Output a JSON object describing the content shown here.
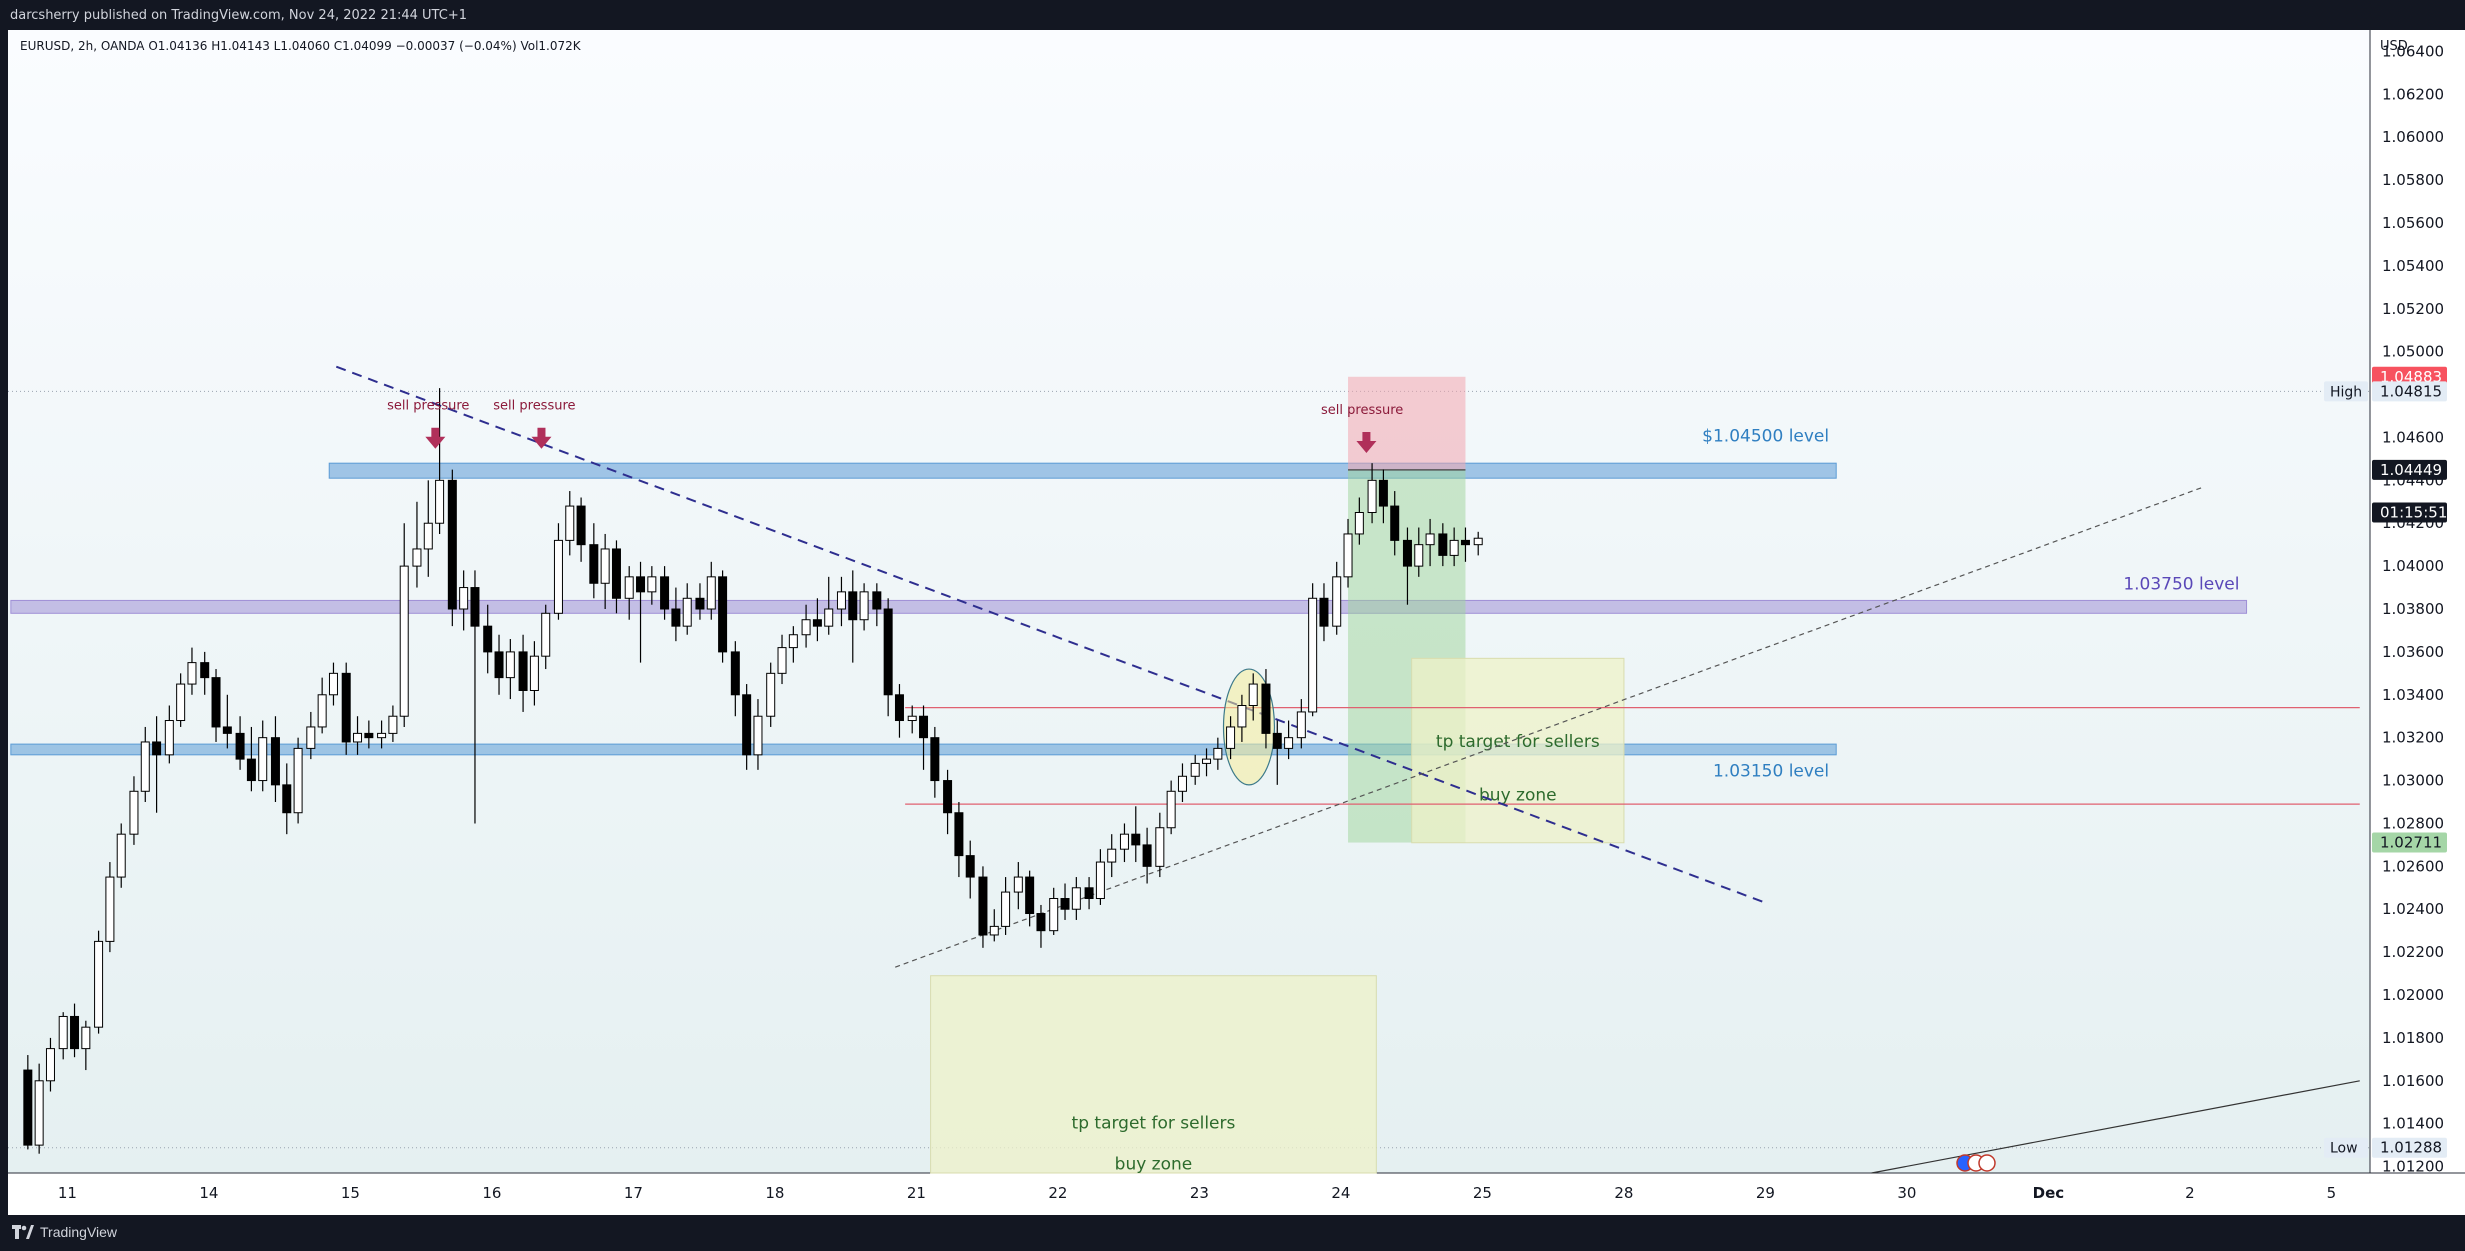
{
  "header": {
    "published_text": "darcsherry published on TradingView.com, Nov 24, 2022 21:44 UTC+1"
  },
  "footer": {
    "brand": "TradingView"
  },
  "colors": {
    "background": "#131722",
    "chart_top": "#fafcff",
    "chart_bottom": "#e7f1f2",
    "blue_zone": "#5b9bd5",
    "purple_zone": "#9f8fd6",
    "trendline": "#2e2e8f",
    "red_line": "#e06070",
    "sell_pressure": "#b0305a",
    "label_blue": "#2f7fc1",
    "label_purple": "#5a48b8",
    "label_green": "#2d6b2d",
    "green_box": "#9ed49a",
    "red_box": "#f3a6ae",
    "yellow_box": "#eef2c8"
  },
  "chart_data": {
    "type": "candlestick",
    "symbol_line": "EURUSD, 2h, OANDA  O1.04136  H1.04143  L1.04060  C1.04099  −0.00037 (−0.04%)  Vol1.072K",
    "currency": "USD",
    "ylim": [
      1.0117,
      1.065
    ],
    "y_ticks": [
      "1.01200",
      "1.01400",
      "1.01600",
      "1.01800",
      "1.02000",
      "1.02200",
      "1.02400",
      "1.02600",
      "1.02800",
      "1.03000",
      "1.03200",
      "1.03400",
      "1.03600",
      "1.03800",
      "1.04000",
      "1.04200",
      "1.04400",
      "1.04600",
      "1.04800",
      "1.05000",
      "1.05200",
      "1.05400",
      "1.05600",
      "1.05800",
      "1.06000",
      "1.06200",
      "1.06400"
    ],
    "x_ticks": [
      {
        "label": "11",
        "x": 0.3
      },
      {
        "label": "14",
        "x": 1.3
      },
      {
        "label": "15",
        "x": 2.3
      },
      {
        "label": "16",
        "x": 3.3
      },
      {
        "label": "17",
        "x": 4.3
      },
      {
        "label": "18",
        "x": 5.3
      },
      {
        "label": "21",
        "x": 6.3
      },
      {
        "label": "22",
        "x": 7.3
      },
      {
        "label": "23",
        "x": 8.3
      },
      {
        "label": "24",
        "x": 9.3
      },
      {
        "label": "25",
        "x": 10.3
      },
      {
        "label": "28",
        "x": 11.3
      },
      {
        "label": "29",
        "x": 12.3
      },
      {
        "label": "30",
        "x": 13.3
      },
      {
        "label": "Dec",
        "x": 14.3
      },
      {
        "label": "2",
        "x": 15.3
      },
      {
        "label": "5",
        "x": 16.3
      }
    ],
    "xlim": [
      -0.1,
      16.5
    ],
    "price_badges": [
      {
        "value": "1.04883",
        "price": 1.04883,
        "color": "#f7525f"
      },
      {
        "value": "1.04815",
        "price": 1.04815,
        "color": "#e3ecf5",
        "text_color": "#131722",
        "side_label": "High"
      },
      {
        "value": "1.04449",
        "price": 1.04449,
        "color": "#131722"
      },
      {
        "value": "01:15:51",
        "price": 1.0425,
        "color": "#131722"
      },
      {
        "value": "1.02711",
        "price": 1.02711,
        "color": "#a5d6a7",
        "text_color": "#131722"
      },
      {
        "value": "1.01288",
        "price": 1.01288,
        "color": "#e3ecf5",
        "text_color": "#131722",
        "side_label": "Low"
      }
    ],
    "zones": [
      {
        "name": "blue-zone-104500",
        "x1": 2.15,
        "x2": 12.8,
        "p1": 1.0441,
        "p2": 1.0448,
        "color": "#5b9bd5"
      },
      {
        "name": "purple-zone-103750",
        "x1": -0.1,
        "x2": 15.7,
        "p1": 1.0378,
        "p2": 1.0384,
        "color": "#9f8fd6"
      },
      {
        "name": "blue-zone-103150",
        "x1": -0.1,
        "x2": 12.8,
        "p1": 1.0312,
        "p2": 1.0317,
        "color": "#5b9bd5"
      }
    ],
    "level_labels": [
      {
        "text": "$1.04500 level",
        "x": 12.75,
        "price": 1.0458,
        "color": "#2f7fc1"
      },
      {
        "text": "1.03750 level",
        "x": 15.65,
        "price": 1.0389,
        "color": "#5a48b8"
      },
      {
        "text": "1.03150 level",
        "x": 12.75,
        "price": 1.0302,
        "color": "#2f7fc1"
      }
    ],
    "annotations": [
      {
        "text": "sell pressure",
        "x": 2.85,
        "price": 1.0473,
        "color": "#8b1a3a"
      },
      {
        "text": "sell pressure",
        "x": 3.6,
        "price": 1.0473,
        "color": "#8b1a3a"
      },
      {
        "text": "sell pressure",
        "x": 9.45,
        "price": 1.0471,
        "color": "#8b1a3a"
      }
    ],
    "arrows": [
      {
        "x": 2.9,
        "price": 1.0458
      },
      {
        "x": 3.65,
        "price": 1.0458
      },
      {
        "x": 9.48,
        "price": 1.0456
      }
    ],
    "red_lines": [
      {
        "x1": 6.22,
        "x2": 16.5,
        "price": 1.0334
      },
      {
        "x1": 6.22,
        "x2": 16.5,
        "price": 1.0289
      }
    ],
    "trendlines": [
      {
        "name": "descending-trendline",
        "x1": 2.2,
        "p1": 1.0493,
        "x2": 12.3,
        "p2": 1.0243,
        "color": "#2e2e8f",
        "dash": "10,7",
        "width": 2
      },
      {
        "name": "ascending-trendline",
        "x1": 6.15,
        "p1": 1.0213,
        "x2": 15.4,
        "p2": 1.0437,
        "color": "#555555",
        "dash": "5,4",
        "width": 1.2
      },
      {
        "name": "long-uptrend-line",
        "x1": 13.05,
        "p1": 1.0117,
        "x2": 16.5,
        "p2": 1.016,
        "color": "#333333",
        "dash": "",
        "width": 1.2
      }
    ],
    "position_box": {
      "x1": 9.35,
      "x2": 10.18,
      "entry": 1.04449,
      "stop": 1.04883,
      "target": 1.02711
    },
    "tp_boxes": [
      {
        "x1": 9.8,
        "x2": 11.3,
        "p1": 1.0271,
        "p2": 1.0357,
        "label1": "tp target for sellers",
        "label1_price": 1.0318,
        "label2": "buy zone",
        "label2_price": 1.0293
      },
      {
        "x1": 6.4,
        "x2": 9.55,
        "p1": 1.0117,
        "p2": 1.0209,
        "label1": "tp target for sellers",
        "label1_price": 1.014,
        "label2": "buy zone",
        "label2_price": 1.0121
      }
    ],
    "circle": {
      "x": 8.65,
      "price": 1.0325,
      "rx_days": 0.36,
      "r_price": 0.0027
    },
    "candles": [
      [
        0.02,
        1.0165,
        1.013,
        1.0172,
        1.0128
      ],
      [
        0.1,
        1.013,
        1.016,
        1.0168,
        1.0126
      ],
      [
        0.18,
        1.016,
        1.0175,
        1.018,
        1.0155
      ],
      [
        0.27,
        1.0175,
        1.019,
        1.0192,
        1.017
      ],
      [
        0.35,
        1.019,
        1.0175,
        1.0196,
        1.0171
      ],
      [
        0.43,
        1.0175,
        1.0185,
        1.0188,
        1.0165
      ],
      [
        0.52,
        1.0185,
        1.0225,
        1.023,
        1.0182
      ],
      [
        0.6,
        1.0225,
        1.0255,
        1.0262,
        1.022
      ],
      [
        0.68,
        1.0255,
        1.0275,
        1.028,
        1.025
      ],
      [
        0.77,
        1.0275,
        1.0295,
        1.0302,
        1.027
      ],
      [
        0.85,
        1.0295,
        1.0318,
        1.0325,
        1.029
      ],
      [
        0.93,
        1.0318,
        1.0312,
        1.033,
        1.0285
      ],
      [
        1.02,
        1.0312,
        1.0328,
        1.0335,
        1.0308
      ],
      [
        1.1,
        1.0328,
        1.0345,
        1.035,
        1.0325
      ],
      [
        1.18,
        1.0345,
        1.0355,
        1.0362,
        1.034
      ],
      [
        1.27,
        1.0355,
        1.0348,
        1.036,
        1.034
      ],
      [
        1.35,
        1.0348,
        1.0325,
        1.0352,
        1.0318
      ],
      [
        1.43,
        1.0325,
        1.0322,
        1.034,
        1.0315
      ],
      [
        1.52,
        1.0322,
        1.031,
        1.033,
        1.0305
      ],
      [
        1.6,
        1.031,
        1.03,
        1.0325,
        1.0295
      ],
      [
        1.68,
        1.03,
        1.032,
        1.0328,
        1.0295
      ],
      [
        1.77,
        1.032,
        1.0298,
        1.033,
        1.029
      ],
      [
        1.85,
        1.0298,
        1.0285,
        1.0308,
        1.0275
      ],
      [
        1.93,
        1.0285,
        1.0315,
        1.032,
        1.028
      ],
      [
        2.02,
        1.0315,
        1.0325,
        1.0332,
        1.031
      ],
      [
        2.1,
        1.0325,
        1.034,
        1.0348,
        1.0322
      ],
      [
        2.18,
        1.034,
        1.035,
        1.0355,
        1.0335
      ],
      [
        2.27,
        1.035,
        1.0318,
        1.0355,
        1.0312
      ],
      [
        2.35,
        1.0318,
        1.0322,
        1.033,
        1.0312
      ],
      [
        2.43,
        1.0322,
        1.032,
        1.0328,
        1.0315
      ],
      [
        2.52,
        1.032,
        1.0322,
        1.0328,
        1.0315
      ],
      [
        2.6,
        1.0322,
        1.033,
        1.0335,
        1.0318
      ],
      [
        2.68,
        1.033,
        1.04,
        1.042,
        1.0325
      ],
      [
        2.77,
        1.04,
        1.0408,
        1.043,
        1.039
      ],
      [
        2.85,
        1.0408,
        1.042,
        1.044,
        1.0395
      ],
      [
        2.93,
        1.042,
        1.044,
        1.0483,
        1.0415
      ],
      [
        3.02,
        1.044,
        1.038,
        1.0445,
        1.0372
      ],
      [
        3.1,
        1.038,
        1.039,
        1.0398,
        1.037
      ],
      [
        3.18,
        1.039,
        1.0372,
        1.0398,
        1.028
      ],
      [
        3.27,
        1.0372,
        1.036,
        1.0382,
        1.035
      ],
      [
        3.35,
        1.036,
        1.0348,
        1.0368,
        1.034
      ],
      [
        3.43,
        1.0348,
        1.036,
        1.0366,
        1.0338
      ],
      [
        3.52,
        1.036,
        1.0342,
        1.0368,
        1.0332
      ],
      [
        3.6,
        1.0342,
        1.0358,
        1.0365,
        1.0335
      ],
      [
        3.68,
        1.0358,
        1.0378,
        1.0382,
        1.0352
      ],
      [
        3.77,
        1.0378,
        1.0412,
        1.042,
        1.0375
      ],
      [
        3.85,
        1.0412,
        1.0428,
        1.0435,
        1.0405
      ],
      [
        3.93,
        1.0428,
        1.041,
        1.0432,
        1.0402
      ],
      [
        4.02,
        1.041,
        1.0392,
        1.042,
        1.0385
      ],
      [
        4.1,
        1.0392,
        1.0408,
        1.0415,
        1.038
      ],
      [
        4.18,
        1.0408,
        1.0385,
        1.0412,
        1.0378
      ],
      [
        4.27,
        1.0385,
        1.0395,
        1.04,
        1.0375
      ],
      [
        4.35,
        1.0395,
        1.0388,
        1.0402,
        1.0355
      ],
      [
        4.43,
        1.0388,
        1.0395,
        1.04,
        1.0382
      ],
      [
        4.52,
        1.0395,
        1.038,
        1.04,
        1.0375
      ],
      [
        4.6,
        1.038,
        1.0372,
        1.039,
        1.0365
      ],
      [
        4.68,
        1.0372,
        1.0385,
        1.0392,
        1.0368
      ],
      [
        4.77,
        1.0385,
        1.038,
        1.0392,
        1.0375
      ],
      [
        4.85,
        1.038,
        1.0395,
        1.0402,
        1.0375
      ],
      [
        4.93,
        1.0395,
        1.036,
        1.0398,
        1.0355
      ],
      [
        5.02,
        1.036,
        1.034,
        1.0365,
        1.033
      ],
      [
        5.1,
        1.034,
        1.0312,
        1.0345,
        1.0305
      ],
      [
        5.18,
        1.0312,
        1.033,
        1.0338,
        1.0305
      ],
      [
        5.27,
        1.033,
        1.035,
        1.0355,
        1.0325
      ],
      [
        5.35,
        1.035,
        1.0362,
        1.0368,
        1.0345
      ],
      [
        5.43,
        1.0362,
        1.0368,
        1.0372,
        1.0355
      ],
      [
        5.52,
        1.0368,
        1.0375,
        1.0382,
        1.0362
      ],
      [
        5.6,
        1.0375,
        1.0372,
        1.0385,
        1.0365
      ],
      [
        5.68,
        1.0372,
        1.038,
        1.0395,
        1.0368
      ],
      [
        5.77,
        1.038,
        1.0388,
        1.0395,
        1.0372
      ],
      [
        5.85,
        1.0388,
        1.0375,
        1.0398,
        1.0355
      ],
      [
        5.93,
        1.0375,
        1.0388,
        1.0392,
        1.037
      ],
      [
        6.02,
        1.0388,
        1.038,
        1.0392,
        1.0372
      ],
      [
        6.1,
        1.038,
        1.034,
        1.0385,
        1.033
      ],
      [
        6.18,
        1.034,
        1.0328,
        1.0345,
        1.032
      ],
      [
        6.27,
        1.0328,
        1.033,
        1.0335,
        1.0322
      ],
      [
        6.35,
        1.033,
        1.032,
        1.0335,
        1.0305
      ],
      [
        6.43,
        1.032,
        1.03,
        1.0325,
        1.0292
      ],
      [
        6.52,
        1.03,
        1.0285,
        1.0305,
        1.0275
      ],
      [
        6.6,
        1.0285,
        1.0265,
        1.029,
        1.0255
      ],
      [
        6.68,
        1.0265,
        1.0255,
        1.0272,
        1.0245
      ],
      [
        6.77,
        1.0255,
        1.0228,
        1.026,
        1.0222
      ],
      [
        6.85,
        1.0228,
        1.0232,
        1.024,
        1.0225
      ],
      [
        6.93,
        1.0232,
        1.0248,
        1.0255,
        1.0228
      ],
      [
        7.02,
        1.0248,
        1.0255,
        1.0262,
        1.024
      ],
      [
        7.1,
        1.0255,
        1.0238,
        1.0258,
        1.0232
      ],
      [
        7.18,
        1.0238,
        1.023,
        1.0242,
        1.0222
      ],
      [
        7.27,
        1.023,
        1.0245,
        1.025,
        1.0228
      ],
      [
        7.35,
        1.0245,
        1.024,
        1.0252,
        1.0235
      ],
      [
        7.43,
        1.024,
        1.025,
        1.0255,
        1.0235
      ],
      [
        7.52,
        1.025,
        1.0245,
        1.0255,
        1.024
      ],
      [
        7.6,
        1.0245,
        1.0262,
        1.0268,
        1.0242
      ],
      [
        7.68,
        1.0262,
        1.0268,
        1.0275,
        1.0255
      ],
      [
        7.77,
        1.0268,
        1.0275,
        1.028,
        1.0262
      ],
      [
        7.85,
        1.0275,
        1.027,
        1.0288,
        1.0262
      ],
      [
        7.93,
        1.027,
        1.026,
        1.0278,
        1.0252
      ],
      [
        8.02,
        1.026,
        1.0278,
        1.0285,
        1.0255
      ],
      [
        8.1,
        1.0278,
        1.0295,
        1.03,
        1.0275
      ],
      [
        8.18,
        1.0295,
        1.0302,
        1.0308,
        1.029
      ],
      [
        8.27,
        1.0302,
        1.0308,
        1.0312,
        1.0298
      ],
      [
        8.35,
        1.0308,
        1.031,
        1.0315,
        1.0302
      ],
      [
        8.43,
        1.031,
        1.0315,
        1.032,
        1.0305
      ],
      [
        8.52,
        1.0315,
        1.0325,
        1.033,
        1.031
      ],
      [
        8.6,
        1.0325,
        1.0335,
        1.034,
        1.0318
      ],
      [
        8.68,
        1.0335,
        1.0345,
        1.035,
        1.0328
      ],
      [
        8.77,
        1.0345,
        1.0322,
        1.0352,
        1.0315
      ],
      [
        8.85,
        1.0322,
        1.0315,
        1.0328,
        1.0298
      ],
      [
        8.93,
        1.0315,
        1.032,
        1.0328,
        1.031
      ],
      [
        9.02,
        1.032,
        1.0332,
        1.0338,
        1.0315
      ],
      [
        9.1,
        1.0332,
        1.0385,
        1.0392,
        1.033
      ],
      [
        9.18,
        1.0385,
        1.0372,
        1.0392,
        1.0365
      ],
      [
        9.27,
        1.0372,
        1.0395,
        1.0402,
        1.0368
      ],
      [
        9.35,
        1.0395,
        1.0415,
        1.0422,
        1.039
      ],
      [
        9.43,
        1.0415,
        1.0425,
        1.0432,
        1.041
      ],
      [
        9.52,
        1.0425,
        1.044,
        1.0448,
        1.042
      ],
      [
        9.6,
        1.044,
        1.0428,
        1.0445,
        1.042
      ],
      [
        9.68,
        1.0428,
        1.0412,
        1.0435,
        1.0405
      ],
      [
        9.77,
        1.0412,
        1.04,
        1.0418,
        1.0382
      ],
      [
        9.85,
        1.04,
        1.041,
        1.0418,
        1.0395
      ],
      [
        9.93,
        1.041,
        1.0415,
        1.0422,
        1.04
      ],
      [
        10.02,
        1.0415,
        1.0405,
        1.042,
        1.04
      ],
      [
        10.1,
        1.0405,
        1.0412,
        1.0418,
        1.04
      ],
      [
        10.18,
        1.0412,
        1.041,
        1.0418,
        1.0402
      ],
      [
        10.27,
        1.041,
        1.0413,
        1.0416,
        1.0405
      ]
    ]
  }
}
